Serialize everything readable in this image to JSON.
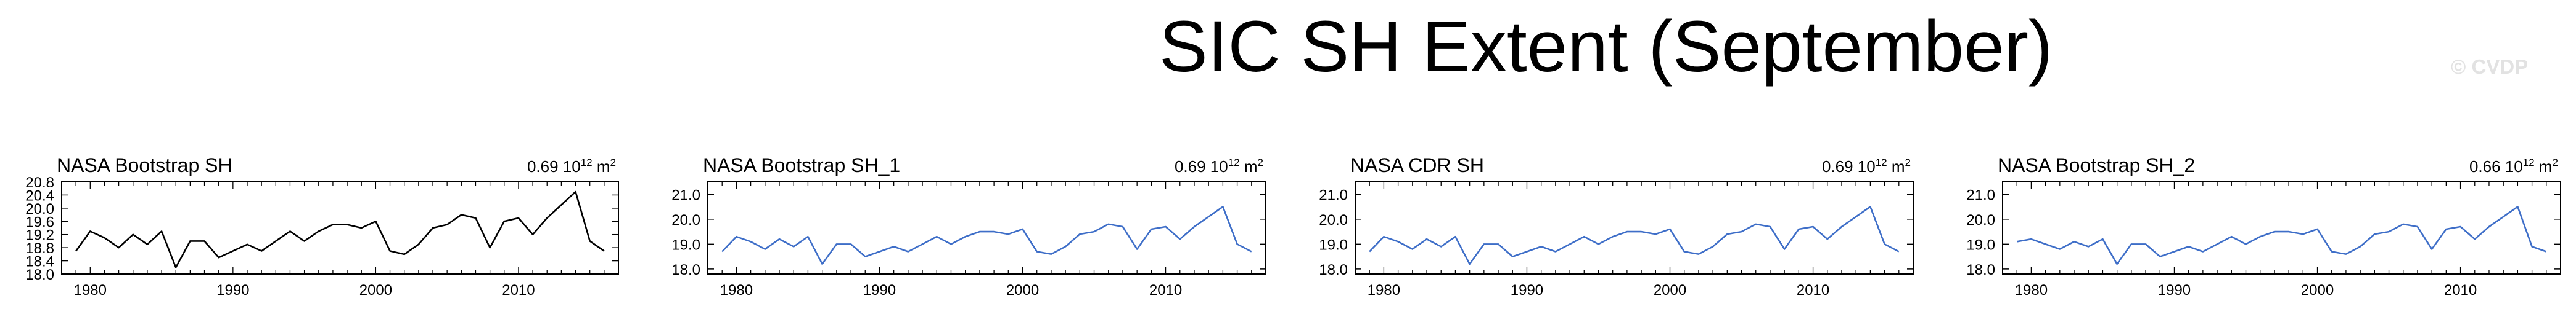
{
  "title": "SIC SH Extent (September)",
  "credit": "© CVDP",
  "chart_data": [
    {
      "type": "line",
      "title": "NASA Bootstrap SH",
      "annotation_value": "0.69",
      "annotation_exp": "12",
      "annotation_unit": "m",
      "annotation_unit_exp": "2",
      "color": "#000000",
      "xlim": [
        1978,
        2017
      ],
      "ylim": [
        18.0,
        20.8
      ],
      "yticks": [
        18.0,
        18.4,
        18.8,
        19.2,
        19.6,
        20.0,
        20.4,
        20.8
      ],
      "ytick_labels": [
        "18.0",
        "18.4",
        "18.8",
        "19.2",
        "19.6",
        "20.0",
        "20.4",
        "20.8"
      ],
      "xticks": [
        1980,
        1990,
        2000,
        2010
      ],
      "xtick_labels": [
        "1980",
        "1990",
        "2000",
        "2010"
      ],
      "x": [
        1979,
        1980,
        1981,
        1982,
        1983,
        1984,
        1985,
        1986,
        1987,
        1988,
        1989,
        1990,
        1991,
        1992,
        1993,
        1994,
        1995,
        1996,
        1997,
        1998,
        1999,
        2000,
        2001,
        2002,
        2003,
        2004,
        2005,
        2006,
        2007,
        2008,
        2009,
        2010,
        2011,
        2012,
        2013,
        2014,
        2015,
        2016
      ],
      "y": [
        18.7,
        19.3,
        19.1,
        18.8,
        19.2,
        18.9,
        19.3,
        18.2,
        19.0,
        19.0,
        18.5,
        18.7,
        18.9,
        18.7,
        19.0,
        19.3,
        19.0,
        19.3,
        19.5,
        19.5,
        19.4,
        19.6,
        18.7,
        18.6,
        18.9,
        19.4,
        19.5,
        19.8,
        19.7,
        18.8,
        19.6,
        19.7,
        19.2,
        19.7,
        20.1,
        20.5,
        19.0,
        18.7
      ]
    },
    {
      "type": "line",
      "title": "NASA Bootstrap SH_1",
      "annotation_value": "0.69",
      "annotation_exp": "12",
      "annotation_unit": "m",
      "annotation_unit_exp": "2",
      "color": "#3e6ec8",
      "xlim": [
        1978,
        2017
      ],
      "ylim": [
        17.8,
        21.5
      ],
      "yticks": [
        18.0,
        19.0,
        20.0,
        21.0
      ],
      "ytick_labels": [
        "18.0",
        "19.0",
        "20.0",
        "21.0"
      ],
      "xticks": [
        1980,
        1990,
        2000,
        2010
      ],
      "xtick_labels": [
        "1980",
        "1990",
        "2000",
        "2010"
      ],
      "x": [
        1979,
        1980,
        1981,
        1982,
        1983,
        1984,
        1985,
        1986,
        1987,
        1988,
        1989,
        1990,
        1991,
        1992,
        1993,
        1994,
        1995,
        1996,
        1997,
        1998,
        1999,
        2000,
        2001,
        2002,
        2003,
        2004,
        2005,
        2006,
        2007,
        2008,
        2009,
        2010,
        2011,
        2012,
        2013,
        2014,
        2015,
        2016
      ],
      "y": [
        18.7,
        19.3,
        19.1,
        18.8,
        19.2,
        18.9,
        19.3,
        18.2,
        19.0,
        19.0,
        18.5,
        18.7,
        18.9,
        18.7,
        19.0,
        19.3,
        19.0,
        19.3,
        19.5,
        19.5,
        19.4,
        19.6,
        18.7,
        18.6,
        18.9,
        19.4,
        19.5,
        19.8,
        19.7,
        18.8,
        19.6,
        19.7,
        19.2,
        19.7,
        20.1,
        20.5,
        19.0,
        18.7
      ]
    },
    {
      "type": "line",
      "title": "NASA CDR SH",
      "annotation_value": "0.69",
      "annotation_exp": "12",
      "annotation_unit": "m",
      "annotation_unit_exp": "2",
      "color": "#3e6ec8",
      "xlim": [
        1978,
        2017
      ],
      "ylim": [
        17.8,
        21.5
      ],
      "yticks": [
        18.0,
        19.0,
        20.0,
        21.0
      ],
      "ytick_labels": [
        "18.0",
        "19.0",
        "20.0",
        "21.0"
      ],
      "xticks": [
        1980,
        1990,
        2000,
        2010
      ],
      "xtick_labels": [
        "1980",
        "1990",
        "2000",
        "2010"
      ],
      "x": [
        1979,
        1980,
        1981,
        1982,
        1983,
        1984,
        1985,
        1986,
        1987,
        1988,
        1989,
        1990,
        1991,
        1992,
        1993,
        1994,
        1995,
        1996,
        1997,
        1998,
        1999,
        2000,
        2001,
        2002,
        2003,
        2004,
        2005,
        2006,
        2007,
        2008,
        2009,
        2010,
        2011,
        2012,
        2013,
        2014,
        2015,
        2016
      ],
      "y": [
        18.7,
        19.3,
        19.1,
        18.8,
        19.2,
        18.9,
        19.3,
        18.2,
        19.0,
        19.0,
        18.5,
        18.7,
        18.9,
        18.7,
        19.0,
        19.3,
        19.0,
        19.3,
        19.5,
        19.5,
        19.4,
        19.6,
        18.7,
        18.6,
        18.9,
        19.4,
        19.5,
        19.8,
        19.7,
        18.8,
        19.6,
        19.7,
        19.2,
        19.7,
        20.1,
        20.5,
        19.0,
        18.7
      ]
    },
    {
      "type": "line",
      "title": "NASA Bootstrap SH_2",
      "annotation_value": "0.66",
      "annotation_exp": "12",
      "annotation_unit": "m",
      "annotation_unit_exp": "2",
      "color": "#3e6ec8",
      "xlim": [
        1978,
        2017
      ],
      "ylim": [
        17.8,
        21.5
      ],
      "yticks": [
        18.0,
        19.0,
        20.0,
        21.0
      ],
      "ytick_labels": [
        "18.0",
        "19.0",
        "20.0",
        "21.0"
      ],
      "xticks": [
        1980,
        1990,
        2000,
        2010
      ],
      "xtick_labels": [
        "1980",
        "1990",
        "2000",
        "2010"
      ],
      "x": [
        1979,
        1980,
        1981,
        1982,
        1983,
        1984,
        1985,
        1986,
        1987,
        1988,
        1989,
        1990,
        1991,
        1992,
        1993,
        1994,
        1995,
        1996,
        1997,
        1998,
        1999,
        2000,
        2001,
        2002,
        2003,
        2004,
        2005,
        2006,
        2007,
        2008,
        2009,
        2010,
        2011,
        2012,
        2013,
        2014,
        2015,
        2016
      ],
      "y": [
        19.1,
        19.2,
        19.0,
        18.8,
        19.1,
        18.9,
        19.2,
        18.2,
        19.0,
        19.0,
        18.5,
        18.7,
        18.9,
        18.7,
        19.0,
        19.3,
        19.0,
        19.3,
        19.5,
        19.5,
        19.4,
        19.6,
        18.7,
        18.6,
        18.9,
        19.4,
        19.5,
        19.8,
        19.7,
        18.8,
        19.6,
        19.7,
        19.2,
        19.7,
        20.1,
        20.5,
        18.9,
        18.7
      ]
    }
  ]
}
